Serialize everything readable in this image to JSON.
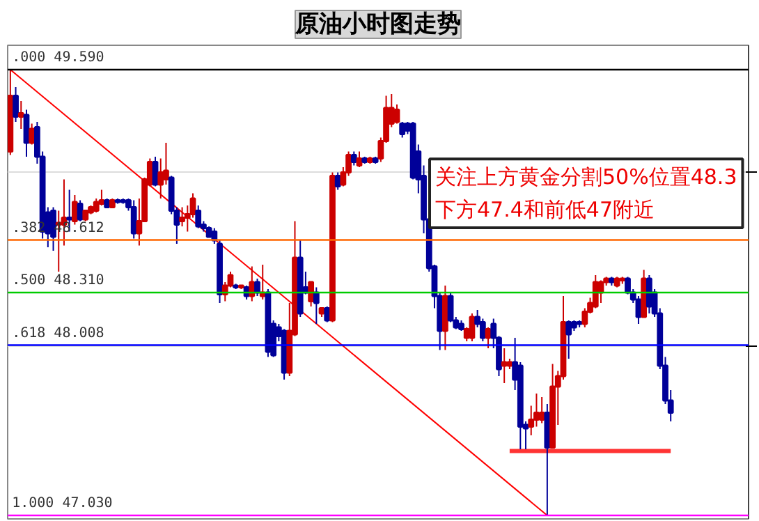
{
  "chart_data": {
    "type": "candlestick",
    "title": "原油小时图走势",
    "categories": [
      null,
      null,
      null,
      null,
      null,
      null,
      null,
      null,
      null,
      null,
      null,
      null,
      null,
      null,
      null,
      null,
      null,
      null,
      null,
      null,
      null,
      null,
      null,
      null,
      null,
      null,
      null,
      null,
      null,
      null,
      null,
      null,
      null,
      null,
      null,
      null,
      null,
      null,
      null,
      null,
      null,
      null,
      null,
      null,
      null,
      null,
      null,
      null,
      null,
      null,
      null,
      null,
      null,
      null,
      null,
      null,
      null,
      null,
      null,
      null,
      null,
      null,
      null,
      null,
      null,
      null,
      null,
      null,
      null,
      null,
      null,
      null,
      null,
      null,
      null,
      null,
      null,
      null,
      null,
      null,
      null,
      null,
      null,
      null,
      null,
      null,
      null,
      null,
      null,
      null,
      null,
      null,
      null,
      null,
      null,
      null,
      null,
      null,
      null,
      null,
      null,
      null,
      null,
      null,
      null,
      null,
      null,
      null,
      null,
      null,
      null,
      null,
      null,
      null,
      null,
      null,
      null,
      null,
      null,
      null,
      null,
      null,
      null,
      null
    ],
    "colors": [
      "#cc0000",
      "#000099",
      "#cc0000",
      "#000099",
      "#cc0000",
      "#000099",
      "#000099",
      "#000099",
      "#000099",
      "#cc0000",
      "#cc0000",
      "#000099",
      "#cc0000",
      "#000099",
      "#cc0000",
      "#cc0000",
      "#cc0000",
      "#cc0000",
      "#000099",
      "#cc0000",
      "#000099",
      "#000099",
      "#000099",
      "#000099",
      "#cc0000",
      "#cc0000",
      "#cc0000",
      "#000099",
      "#cc0000",
      "#cc0000",
      "#000099",
      "#000099",
      "#cc0000",
      "#cc0000",
      "#cc0000",
      "#000099",
      "#000099",
      "#000099",
      "#000099",
      "#000099",
      "#cc0000",
      "#cc0000",
      "#000099",
      "#cc0000",
      "#000099",
      "#cc0000",
      "#000099",
      "#cc0000",
      "#000099",
      "#000099",
      "#000099",
      "#000099",
      "#cc0000",
      "#cc0000",
      "#000099",
      "#000099",
      "#cc0000",
      "#000099",
      "#cc0000",
      "#000099",
      "#cc0000",
      "#000099",
      "#cc0000",
      "#cc0000",
      "#000099",
      "#cc0000",
      "#000099",
      "#cc0000",
      "#000099",
      "#cc0000",
      "#cc0000",
      "#cc0000",
      "#cc0000",
      "#000099",
      "#000099",
      "#000099",
      "#000099",
      "#000099",
      "#000099",
      "#000099",
      "#000099",
      "#cc0000",
      "#000099",
      "#000099",
      "#000099",
      "#cc0000",
      "#cc0000",
      "#000099",
      "#000099",
      "#cc0000",
      "#000099",
      "#000099",
      "#cc0000",
      "#cc0000",
      "#000099",
      "#000099",
      "#000099",
      "#cc0000",
      "#cc0000",
      "#cc0000",
      "#000099",
      "#cc0000",
      "#cc0000",
      "#cc0000",
      "#000099",
      "#000099",
      "#000099",
      "#cc0000",
      "#cc0000",
      "#cc0000",
      "#cc0000",
      "#cc0000",
      "#000099",
      "#cc0000",
      "#cc0000",
      "#000099",
      "#000099",
      "#000099",
      "#cc0000",
      "#000099",
      "#000099",
      "#000099",
      "#000099",
      "#000099"
    ],
    "ohlc": [
      [
        49.12,
        49.59,
        49.1,
        49.44
      ],
      [
        49.44,
        49.49,
        49.29,
        49.32
      ],
      [
        49.32,
        49.41,
        49.25,
        49.34
      ],
      [
        49.33,
        49.36,
        49.09,
        49.17
      ],
      [
        49.17,
        49.28,
        49.16,
        49.25
      ],
      [
        49.26,
        49.29,
        49.05,
        49.09
      ],
      [
        49.09,
        49.12,
        48.62,
        48.66
      ],
      [
        48.77,
        48.8,
        48.57,
        48.65
      ],
      [
        48.78,
        48.8,
        48.55,
        48.63
      ],
      [
        48.7,
        48.78,
        48.43,
        48.71
      ],
      [
        48.7,
        48.96,
        48.58,
        48.74
      ],
      [
        48.74,
        48.9,
        48.66,
        48.73
      ],
      [
        48.72,
        48.87,
        48.7,
        48.83
      ],
      [
        48.82,
        48.84,
        48.72,
        48.73
      ],
      [
        48.73,
        48.78,
        48.72,
        48.78
      ],
      [
        48.77,
        48.81,
        48.76,
        48.8
      ],
      [
        48.78,
        48.85,
        48.77,
        48.83
      ],
      [
        48.82,
        48.9,
        48.81,
        48.84
      ],
      [
        48.84,
        48.85,
        48.8,
        48.8
      ],
      [
        48.8,
        48.85,
        48.8,
        48.84
      ],
      [
        48.84,
        48.85,
        48.82,
        48.83
      ],
      [
        48.84,
        48.85,
        48.82,
        48.83
      ],
      [
        48.84,
        48.85,
        48.78,
        48.8
      ],
      [
        48.8,
        48.84,
        48.62,
        48.65
      ],
      [
        48.65,
        48.85,
        48.58,
        48.72
      ],
      [
        48.72,
        48.97,
        48.72,
        48.96
      ],
      [
        48.93,
        49.08,
        48.92,
        49.06
      ],
      [
        49.06,
        49.09,
        48.92,
        48.93
      ],
      [
        48.93,
        49.08,
        48.85,
        49.0
      ],
      [
        48.96,
        49.17,
        48.93,
        49.01
      ],
      [
        48.97,
        48.98,
        48.76,
        48.78
      ],
      [
        48.78,
        48.8,
        48.59,
        48.7
      ],
      [
        48.72,
        48.8,
        48.69,
        48.74
      ],
      [
        48.74,
        48.81,
        48.66,
        48.76
      ],
      [
        48.76,
        48.88,
        48.74,
        48.85
      ],
      [
        48.78,
        48.81,
        48.68,
        48.69
      ],
      [
        48.7,
        48.72,
        48.66,
        48.68
      ],
      [
        48.68,
        48.69,
        48.63,
        48.63
      ],
      [
        48.66,
        48.68,
        48.59,
        48.61
      ],
      [
        48.59,
        48.61,
        48.25,
        48.3
      ],
      [
        48.3,
        48.37,
        48.26,
        48.35
      ],
      [
        48.35,
        48.43,
        48.34,
        48.41
      ],
      [
        48.35,
        48.36,
        48.33,
        48.34
      ],
      [
        48.34,
        48.35,
        48.33,
        48.35
      ],
      [
        48.34,
        48.35,
        48.27,
        48.29
      ],
      [
        48.29,
        48.46,
        48.26,
        48.37
      ],
      [
        48.37,
        48.39,
        48.29,
        48.31
      ],
      [
        48.29,
        48.47,
        48.27,
        48.31
      ],
      [
        48.31,
        48.33,
        47.94,
        47.97
      ],
      [
        48.13,
        48.15,
        47.94,
        47.95
      ],
      [
        48.11,
        48.13,
        48.03,
        48.06
      ],
      [
        48.09,
        48.1,
        47.81,
        47.85
      ],
      [
        47.85,
        48.25,
        47.83,
        48.09
      ],
      [
        48.07,
        48.72,
        48.06,
        48.51
      ],
      [
        48.51,
        48.61,
        48.17,
        48.19
      ],
      [
        48.34,
        48.43,
        48.3,
        48.31
      ],
      [
        48.26,
        48.37,
        48.23,
        48.37
      ],
      [
        48.31,
        48.34,
        48.13,
        48.25
      ],
      [
        48.19,
        48.22,
        48.17,
        48.22
      ],
      [
        48.22,
        48.23,
        48.14,
        48.15
      ],
      [
        48.15,
        49.0,
        48.14,
        48.98
      ],
      [
        48.98,
        49.0,
        48.9,
        48.92
      ],
      [
        48.93,
        49.03,
        48.92,
        49.0
      ],
      [
        49.0,
        49.12,
        48.98,
        49.1
      ],
      [
        49.1,
        49.12,
        49.04,
        49.06
      ],
      [
        49.04,
        49.12,
        49.03,
        49.08
      ],
      [
        49.08,
        49.09,
        49.05,
        49.06
      ],
      [
        49.06,
        49.09,
        49.05,
        49.08
      ],
      [
        49.08,
        49.09,
        49.05,
        49.06
      ],
      [
        49.08,
        49.2,
        49.06,
        49.18
      ],
      [
        49.18,
        49.44,
        49.17,
        49.37
      ],
      [
        49.28,
        49.45,
        49.26,
        49.37
      ],
      [
        49.29,
        49.39,
        49.28,
        49.36
      ],
      [
        49.28,
        49.29,
        49.2,
        49.22
      ],
      [
        49.28,
        49.29,
        49.22,
        49.24
      ],
      [
        49.28,
        49.29,
        48.96,
        48.97
      ],
      [
        49.12,
        49.16,
        48.88,
        48.96
      ],
      [
        48.98,
        49.04,
        48.65,
        48.73
      ],
      [
        48.73,
        48.76,
        48.43,
        48.45
      ],
      [
        48.46,
        48.47,
        48.22,
        48.29
      ],
      [
        48.29,
        48.31,
        47.98,
        48.09
      ],
      [
        48.09,
        48.35,
        47.98,
        48.29
      ],
      [
        48.29,
        48.31,
        48.14,
        48.15
      ],
      [
        48.15,
        48.17,
        48.1,
        48.11
      ],
      [
        48.13,
        48.15,
        48.09,
        48.1
      ],
      [
        48.05,
        48.11,
        48.03,
        48.1
      ],
      [
        48.05,
        48.19,
        48.03,
        48.17
      ],
      [
        48.17,
        48.21,
        48.11,
        48.13
      ],
      [
        48.14,
        48.16,
        48.03,
        48.05
      ],
      [
        48.05,
        48.11,
        47.99,
        48.1
      ],
      [
        48.13,
        48.16,
        47.99,
        48.05
      ],
      [
        48.05,
        48.06,
        47.83,
        47.87
      ],
      [
        47.89,
        47.99,
        47.79,
        47.91
      ],
      [
        47.89,
        47.93,
        47.87,
        47.91
      ],
      [
        47.91,
        48.05,
        47.75,
        47.81
      ],
      [
        47.89,
        47.91,
        47.41,
        47.54
      ],
      [
        47.55,
        47.57,
        47.41,
        47.53
      ],
      [
        47.54,
        47.66,
        47.49,
        47.58
      ],
      [
        47.58,
        47.73,
        47.54,
        47.62
      ],
      [
        47.58,
        47.71,
        47.56,
        47.62
      ],
      [
        47.62,
        47.67,
        47.03,
        47.42
      ],
      [
        47.42,
        47.9,
        47.42,
        47.77
      ],
      [
        47.77,
        47.86,
        47.55,
        47.83
      ],
      [
        47.83,
        48.29,
        47.81,
        48.14
      ],
      [
        48.14,
        48.15,
        47.93,
        48.07
      ],
      [
        48.14,
        48.15,
        48.09,
        48.11
      ],
      [
        48.14,
        48.15,
        48.11,
        48.13
      ],
      [
        48.13,
        48.22,
        48.11,
        48.2
      ],
      [
        48.2,
        48.28,
        48.19,
        48.25
      ],
      [
        48.23,
        48.41,
        48.22,
        48.37
      ],
      [
        48.31,
        48.38,
        48.25,
        48.37
      ],
      [
        48.37,
        48.4,
        48.35,
        48.39
      ],
      [
        48.39,
        48.4,
        48.35,
        48.37
      ],
      [
        48.35,
        48.4,
        48.34,
        48.39
      ],
      [
        48.38,
        48.4,
        48.36,
        48.39
      ],
      [
        48.39,
        48.4,
        48.3,
        48.31
      ],
      [
        48.31,
        48.33,
        48.25,
        48.27
      ],
      [
        48.27,
        48.29,
        48.13,
        48.17
      ],
      [
        48.17,
        48.44,
        48.17,
        48.39
      ],
      [
        48.39,
        48.41,
        48.19,
        48.23
      ],
      [
        48.31,
        48.33,
        48.17,
        48.19
      ],
      [
        48.19,
        48.22,
        47.87,
        47.89
      ],
      [
        47.89,
        47.94,
        47.67,
        47.69
      ],
      [
        47.69,
        47.75,
        47.57,
        47.62
      ]
    ],
    "series": [
      {
        "type": "line",
        "color": "#ff0000",
        "values": [
          49.59,
          null,
          null,
          null,
          null,
          null,
          null,
          null,
          null,
          null,
          null,
          null,
          null,
          null,
          null,
          null,
          null,
          null,
          null,
          null,
          null,
          null,
          null,
          null,
          null,
          null,
          null,
          null,
          null,
          null,
          null,
          null,
          null,
          null,
          null,
          null,
          null,
          null,
          null,
          null,
          null,
          null,
          null,
          null,
          null,
          null,
          null,
          null,
          null,
          null,
          null,
          null,
          null,
          null,
          null,
          null,
          null,
          null,
          null,
          null,
          null,
          null,
          null,
          null,
          null,
          null,
          null,
          null,
          null,
          null,
          null,
          null,
          null,
          null,
          null,
          null,
          null,
          null,
          null,
          null,
          null,
          null,
          null,
          null,
          null,
          null,
          null,
          null,
          null,
          null,
          null,
          null,
          null,
          null,
          null,
          null,
          null,
          null,
          null,
          null,
          47.03,
          null,
          null,
          null,
          null,
          null,
          null,
          null,
          null,
          null,
          null,
          null,
          null,
          null,
          null,
          null,
          null,
          null,
          null,
          null,
          null,
          null,
          null,
          null
        ]
      },
      {
        "type": "line",
        "color": "#ff3333",
        "values": [
          null,
          null,
          null,
          null,
          null,
          null,
          null,
          null,
          null,
          null,
          null,
          null,
          null,
          null,
          null,
          null,
          null,
          null,
          null,
          null,
          null,
          null,
          null,
          null,
          null,
          null,
          null,
          null,
          null,
          null,
          null,
          null,
          null,
          null,
          null,
          null,
          null,
          null,
          null,
          null,
          null,
          null,
          null,
          null,
          null,
          null,
          null,
          null,
          null,
          null,
          null,
          null,
          null,
          null,
          null,
          null,
          null,
          null,
          null,
          null,
          null,
          null,
          null,
          null,
          null,
          null,
          null,
          null,
          null,
          null,
          null,
          null,
          null,
          null,
          null,
          null,
          null,
          null,
          null,
          null,
          null,
          null,
          null,
          null,
          null,
          null,
          null,
          null,
          null,
          null,
          null,
          null,
          null,
          47.4,
          47.4,
          47.4,
          47.4,
          47.4,
          47.4,
          47.4,
          47.4,
          47.4,
          47.4,
          47.4,
          47.4,
          47.4,
          47.4,
          47.4,
          47.4,
          47.4,
          47.4,
          47.4,
          47.4,
          47.4,
          47.4,
          47.4,
          47.4,
          47.4,
          47.4,
          47.4,
          47.4,
          47.4,
          47.4,
          47.4
        ]
      }
    ],
    "ref_lines": [
      {
        "axis": "y",
        "value": 49.59,
        "label": ".000 49.590",
        "color": "#000000"
      },
      {
        "axis": "y",
        "value": 48.612,
        "label": ".382 48.612",
        "color": "#ff6600"
      },
      {
        "axis": "y",
        "value": 48.31,
        "label": ".500 48.310",
        "color": "#00cc00"
      },
      {
        "axis": "y",
        "value": 48.008,
        "label": ".618 48.008",
        "color": "#0000ff"
      },
      {
        "axis": "y",
        "value": 47.03,
        "label": "1.000 47.030",
        "color": "#ff00ff"
      }
    ],
    "annotations": [
      "关注上方黄金分割50%位置48.3\n下方47.4和前低47附近"
    ],
    "ylim": [
      47.01,
      49.73
    ],
    "yticks": [
      {
        "value": 48,
        "label": null
      },
      {
        "value": 49,
        "label": null
      }
    ],
    "grid": "y"
  }
}
